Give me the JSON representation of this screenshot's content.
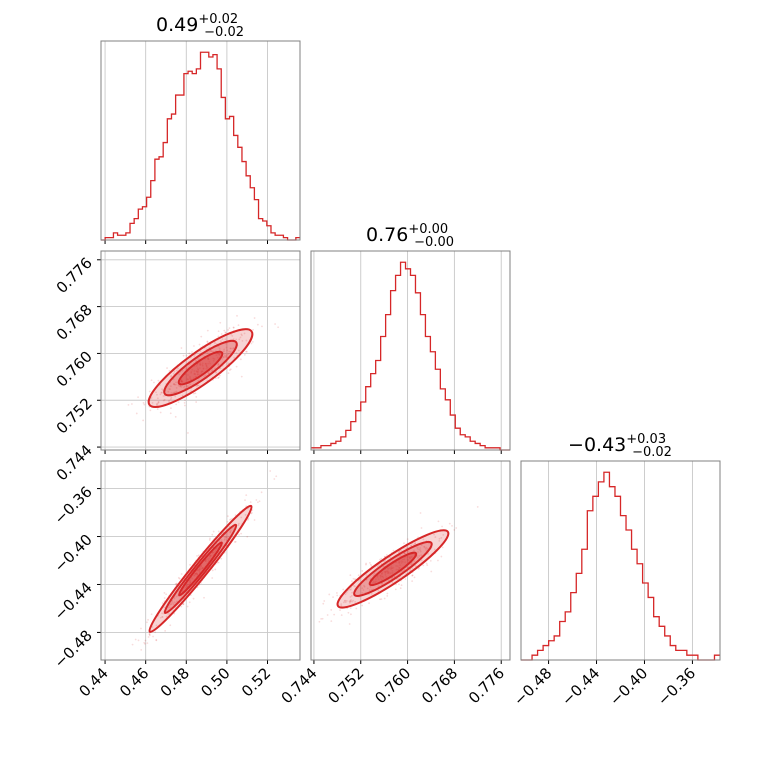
{
  "chart_data": {
    "type": "corner",
    "parameters": [
      {
        "title": {
          "median": "0.49",
          "plus": "+0.02",
          "minus": "−0.02"
        },
        "range": [
          0.438,
          0.536
        ],
        "ticks": [
          0.44,
          0.46,
          0.48,
          0.5,
          0.52
        ],
        "tick_labels": [
          "0.44",
          "0.46",
          "0.48",
          "0.50",
          "0.52"
        ]
      },
      {
        "title": {
          "median": "0.76",
          "plus": "+0.00",
          "minus": "−0.00"
        },
        "range": [
          0.7435,
          0.7775
        ],
        "ticks": [
          0.744,
          0.752,
          0.76,
          0.768,
          0.776
        ],
        "tick_labels": [
          "0.744",
          "0.752",
          "0.760",
          "0.768",
          "0.776"
        ]
      },
      {
        "title": {
          "median": "−0.43",
          "plus": "+0.03",
          "minus": "−0.02"
        },
        "range": [
          -0.503,
          -0.337
        ],
        "ticks": [
          -0.48,
          -0.44,
          -0.4,
          -0.36
        ],
        "tick_labels": [
          "−0.48",
          "−0.44",
          "−0.40",
          "−0.36"
        ]
      }
    ],
    "histograms": [
      {
        "bin_edges": [
          0.438,
          0.536
        ],
        "counts": [
          0,
          1,
          1,
          3,
          2,
          2,
          3,
          7,
          9,
          13,
          14,
          18,
          25,
          34,
          35,
          41,
          51,
          53,
          61,
          61,
          70,
          71,
          70,
          72,
          79,
          79,
          77,
          78,
          72,
          60,
          51,
          52,
          44,
          39,
          33,
          27,
          22,
          17,
          9,
          8,
          6,
          3,
          2,
          2,
          1,
          0,
          0,
          1
        ]
      },
      {
        "bin_edges": [
          0.7435,
          0.7775
        ],
        "counts": [
          1,
          1,
          2,
          2,
          3,
          4,
          6,
          9,
          13,
          18,
          22,
          29,
          35,
          41,
          52,
          62,
          73,
          80,
          86,
          83,
          80,
          72,
          62,
          52,
          45,
          37,
          28,
          23,
          16,
          10,
          7,
          6,
          4,
          3,
          2,
          1,
          1,
          1,
          0,
          0
        ]
      },
      {
        "bin_edges": [
          -0.503,
          -0.337
        ],
        "counts": [
          0,
          0,
          1,
          2,
          3,
          4,
          5,
          8,
          10,
          14,
          18,
          23,
          31,
          34,
          37,
          39,
          36,
          34,
          30,
          27,
          23,
          20,
          16,
          13,
          9,
          7,
          5,
          3,
          2,
          2,
          1,
          1,
          0,
          0,
          0,
          1
        ]
      }
    ],
    "pairs": [
      {
        "x_param": 0,
        "y_param": 1,
        "center": [
          0.487,
          0.7575
        ],
        "slope": 0.25
      },
      {
        "x_param": 0,
        "y_param": 2,
        "center": [
          0.487,
          -0.427
        ],
        "slope": 2.1
      },
      {
        "x_param": 1,
        "y_param": 2,
        "center": [
          0.7575,
          -0.427
        ],
        "slope": 3.3
      }
    ],
    "color": "#d62728",
    "grid": true
  }
}
